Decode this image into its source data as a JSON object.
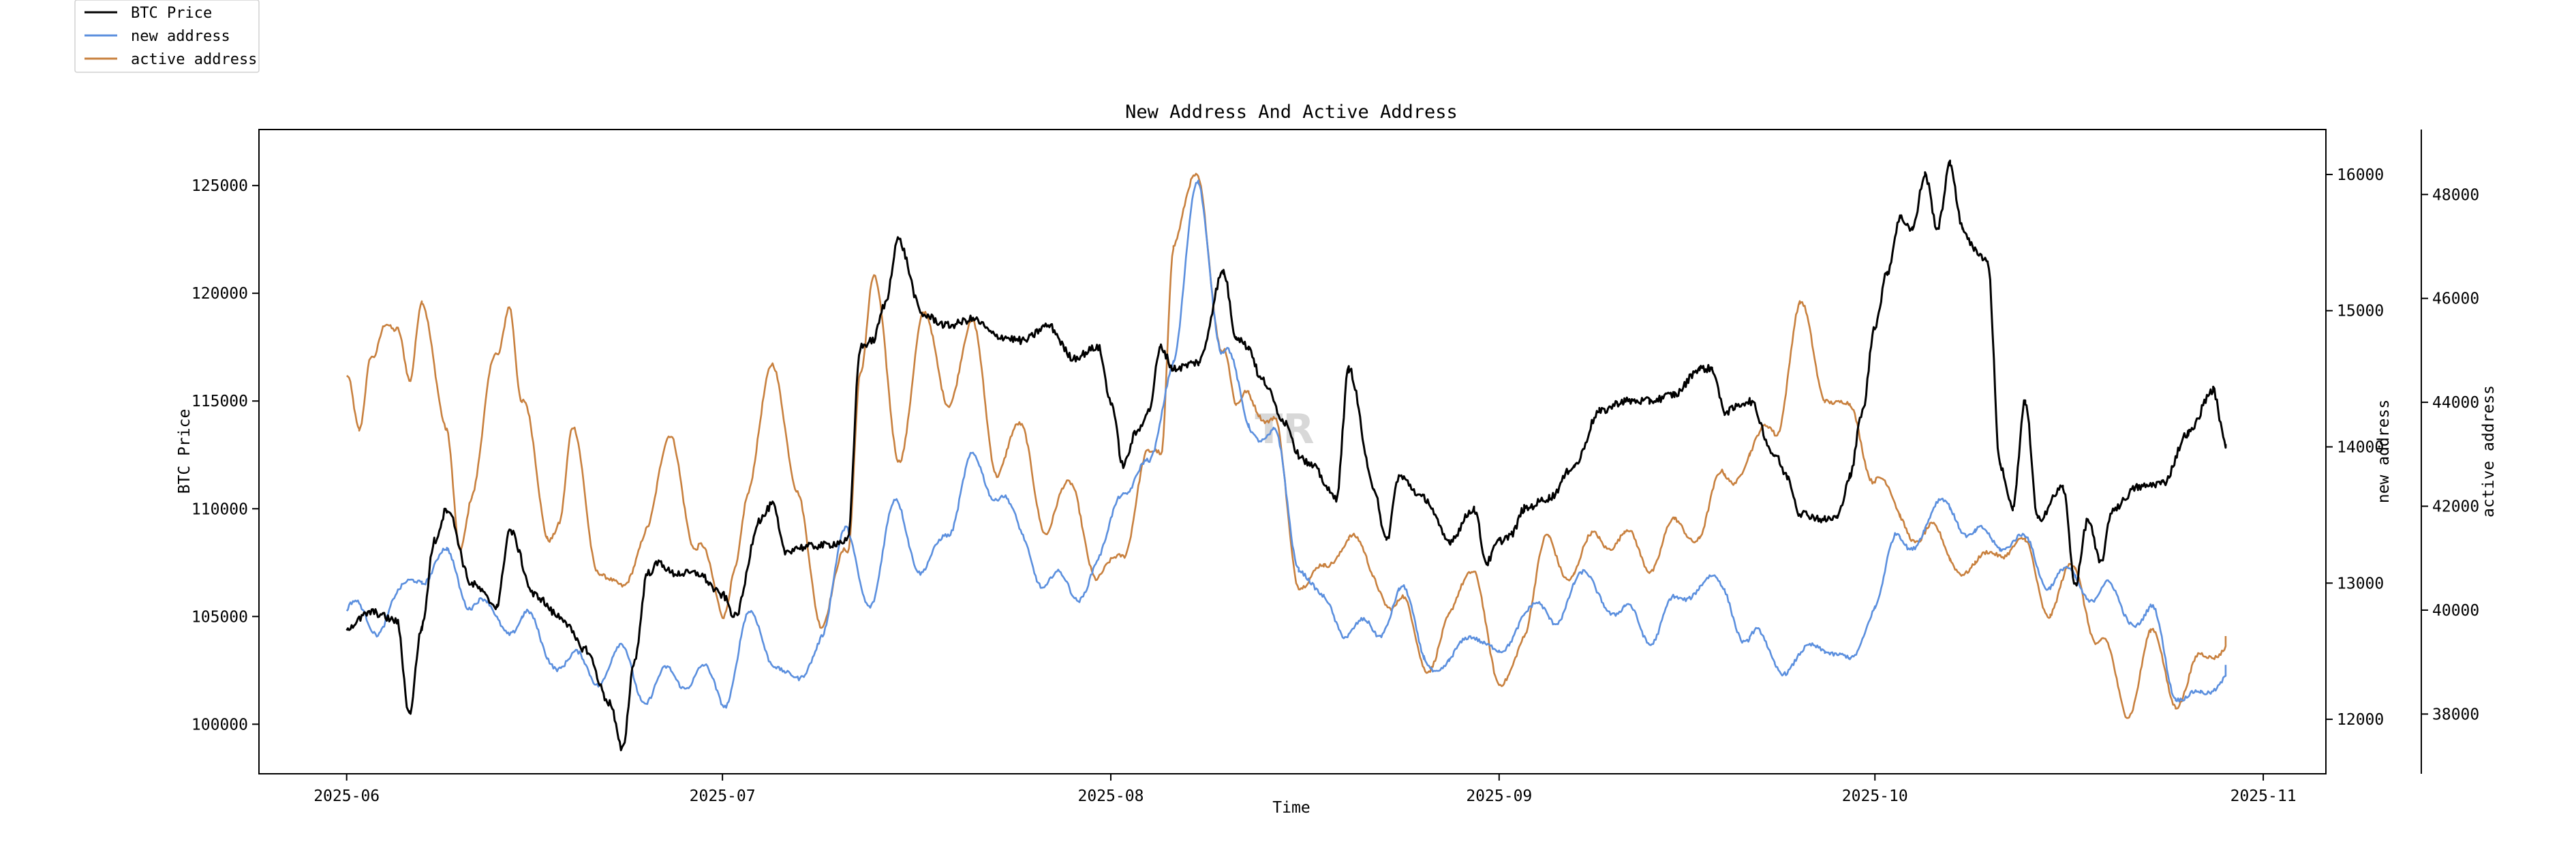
{
  "chart_data": {
    "type": "line",
    "title": "New Address And Active Address",
    "xlabel": "Time",
    "ylabel_left": "BTC Price",
    "ylabel_right1": "new address",
    "ylabel_right2": "active address",
    "x_ticks": [
      "2025-06",
      "2025-07",
      "2025-08",
      "2025-09",
      "2025-10",
      "2025-11"
    ],
    "x_tick_days": [
      0,
      30,
      61,
      92,
      122,
      153
    ],
    "x_range_days": [
      -7,
      158
    ],
    "y_left_ticks": [
      100000,
      105000,
      110000,
      115000,
      120000,
      125000
    ],
    "y_left_tick_labels": [
      "100000",
      "105000",
      "110000",
      "115000",
      "120000",
      "125000"
    ],
    "y_left_range": [
      97700,
      127600
    ],
    "y_right1_ticks": [
      12000,
      13000,
      14000,
      15000,
      16000
    ],
    "y_right1_tick_labels": [
      "12000",
      "13000",
      "14000",
      "15000",
      "16000"
    ],
    "y_right1_range": [
      11600,
      16330
    ],
    "y_right2_ticks": [
      38000,
      40000,
      42000,
      44000,
      46000,
      48000
    ],
    "y_right2_tick_labels": [
      "38000",
      "40000",
      "42000",
      "44000",
      "46000",
      "48000"
    ],
    "y_right2_range": [
      36850,
      49250
    ],
    "legend_position": "top-left (outside)",
    "watermark": "TR",
    "series": [
      {
        "name": "BTC Price",
        "axis": "left",
        "color": "#000000",
        "days": [
          0,
          2,
          4,
          5,
          6,
          7,
          8,
          10,
          12,
          13,
          15,
          17,
          19,
          21,
          22,
          23,
          24,
          25,
          26,
          28,
          30,
          31,
          33,
          34,
          35,
          36,
          38,
          40,
          41,
          42,
          43,
          44,
          46,
          48,
          50,
          52,
          54,
          56,
          58,
          60,
          61,
          62,
          63,
          64,
          65,
          66,
          68,
          70,
          71,
          72,
          73,
          75,
          76,
          77,
          79,
          80,
          82,
          83,
          84,
          86,
          88,
          90,
          91,
          92,
          93,
          94,
          96,
          98,
          100,
          102,
          104,
          106,
          108,
          109,
          110,
          112,
          114,
          115,
          116,
          118,
          119,
          120,
          121,
          122,
          123,
          124,
          125,
          126,
          127,
          128,
          129,
          130,
          131,
          132,
          133,
          134,
          135,
          137,
          138,
          139,
          140,
          141,
          143,
          145,
          147,
          149,
          150
        ],
        "values": [
          104500,
          105200,
          104800,
          100500,
          104500,
          108500,
          110000,
          106500,
          105500,
          109000,
          106000,
          105000,
          103500,
          101000,
          98800,
          103000,
          107000,
          107500,
          107000,
          107000,
          106000,
          105000,
          109500,
          110200,
          108000,
          108200,
          108300,
          108500,
          117500,
          117800,
          119500,
          122500,
          119000,
          118500,
          118800,
          118000,
          117800,
          118500,
          117000,
          117500,
          115000,
          112000,
          113500,
          114500,
          117500,
          116500,
          116800,
          121000,
          118000,
          117500,
          116000,
          114000,
          112500,
          112000,
          110500,
          116500,
          111000,
          108500,
          111500,
          110500,
          108500,
          110000,
          107500,
          108500,
          108800,
          110000,
          110500,
          112000,
          114500,
          115000,
          115000,
          115300,
          116500,
          116500,
          114500,
          115000,
          112500,
          111500,
          109800,
          109500,
          109600,
          111500,
          114500,
          118500,
          121000,
          123500,
          123000,
          125500,
          123000,
          126000,
          123000,
          122000,
          121500,
          112000,
          110000,
          115000,
          109500,
          111000,
          106500,
          109500,
          107500,
          110000,
          111000,
          111200,
          113500,
          115500,
          113000
        ]
      },
      {
        "name": "new address",
        "axis": "right1",
        "color": "#5b8fde",
        "days": [
          0,
          2,
          4,
          6,
          8,
          10,
          12,
          14,
          16,
          18,
          20,
          22,
          24,
          26,
          28,
          30,
          32,
          34,
          36,
          38,
          40,
          42,
          44,
          46,
          48,
          50,
          52,
          54,
          56,
          58,
          60,
          62,
          64,
          66,
          68,
          70,
          72,
          74,
          76,
          78,
          80,
          82,
          84,
          86,
          88,
          90,
          92,
          94,
          96,
          98,
          100,
          102,
          104,
          106,
          108,
          110,
          112,
          114,
          116,
          118,
          120,
          122,
          124,
          126,
          128,
          130,
          132,
          134,
          136,
          138,
          140,
          142,
          144,
          146,
          148,
          150
        ],
        "values": [
          12800,
          12700,
          12850,
          13100,
          13150,
          12900,
          12700,
          12750,
          12500,
          12400,
          12350,
          12450,
          12200,
          12300,
          12350,
          12150,
          12700,
          12500,
          12200,
          12700,
          13350,
          12850,
          13650,
          13000,
          13450,
          13850,
          13700,
          13300,
          13000,
          12950,
          13100,
          13750,
          13800,
          14700,
          15900,
          14700,
          14200,
          14050,
          13200,
          12800,
          12700,
          12600,
          12950,
          12500,
          12350,
          12700,
          12400,
          12850,
          12700,
          13000,
          12950,
          12750,
          12650,
          12800,
          13050,
          12900,
          12600,
          12450,
          12400,
          12600,
          12350,
          12900,
          13300,
          13400,
          13600,
          13300,
          13350,
          13250,
          13050,
          13000,
          12950,
          12800,
          12750,
          12250,
          12100,
          12400
        ]
      },
      {
        "name": "active address",
        "axis": "right2",
        "color": "#c8803e",
        "days": [
          0,
          1,
          2,
          3,
          4,
          5,
          6,
          8,
          9,
          10,
          12,
          13,
          14,
          16,
          17,
          18,
          20,
          22,
          24,
          26,
          28,
          30,
          31,
          32,
          34,
          36,
          38,
          40,
          41,
          42,
          44,
          46,
          48,
          50,
          52,
          54,
          56,
          58,
          60,
          62,
          64,
          65,
          66,
          68,
          70,
          71,
          72,
          74,
          76,
          78,
          80,
          82,
          84,
          86,
          88,
          90,
          92,
          94,
          96,
          98,
          100,
          102,
          104,
          106,
          108,
          110,
          112,
          114,
          116,
          118,
          120,
          122,
          124,
          126,
          128,
          130,
          132,
          134,
          136,
          138,
          140,
          142,
          144,
          146,
          148,
          150
        ],
        "values": [
          44500,
          43200,
          45000,
          45700,
          45200,
          44300,
          46200,
          43200,
          41300,
          42400,
          44800,
          46100,
          44000,
          41500,
          41900,
          43300,
          41000,
          40200,
          41800,
          43200,
          41200,
          40000,
          41000,
          42000,
          45000,
          42000,
          39900,
          41000,
          44800,
          46400,
          43000,
          45500,
          44200,
          45300,
          42800,
          43400,
          41500,
          42500,
          40400,
          41300,
          42800,
          43100,
          47200,
          48200,
          45000,
          43700,
          44300,
          43500,
          40700,
          40600,
          41600,
          40500,
          40200,
          39000,
          39700,
          41000,
          38300,
          39700,
          41300,
          40700,
          41500,
          41300,
          41000,
          41500,
          41600,
          42500,
          43000,
          43500,
          45700,
          44300,
          43700,
          42700,
          41700,
          41500,
          41100,
          40700,
          41300,
          41100,
          40100,
          40700,
          39400,
          38100,
          39400,
          38400,
          38900,
          39500
        ]
      }
    ]
  }
}
